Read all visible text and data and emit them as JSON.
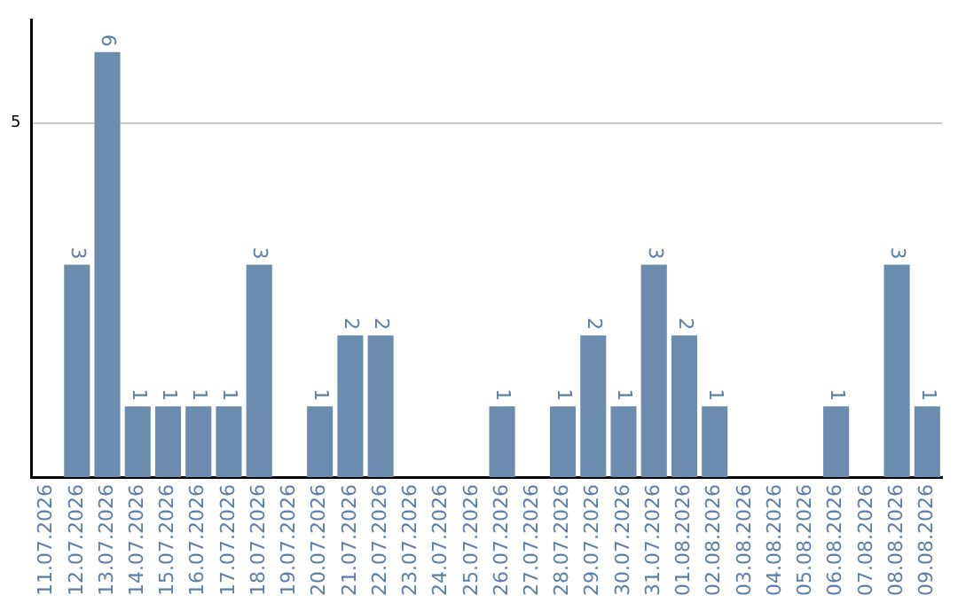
{
  "chart_data": {
    "type": "bar",
    "categories": [
      "11.07.2026",
      "12.07.2026",
      "13.07.2026",
      "14.07.2026",
      "15.07.2026",
      "16.07.2026",
      "17.07.2026",
      "18.07.2026",
      "19.07.2026",
      "20.07.2026",
      "21.07.2026",
      "22.07.2026",
      "23.07.2026",
      "24.07.2026",
      "25.07.2026",
      "26.07.2026",
      "27.07.2026",
      "28.07.2026",
      "29.07.2026",
      "30.07.2026",
      "31.07.2026",
      "01.08.2026",
      "02.08.2026",
      "03.08.2026",
      "04.08.2026",
      "05.08.2026",
      "06.08.2026",
      "07.08.2026",
      "08.08.2026",
      "09.08.2026"
    ],
    "values": [
      0,
      3,
      6,
      1,
      1,
      1,
      1,
      3,
      0,
      1,
      2,
      2,
      0,
      0,
      0,
      1,
      0,
      1,
      2,
      1,
      3,
      2,
      1,
      0,
      0,
      0,
      1,
      0,
      3,
      1
    ],
    "value_labels": [
      null,
      "3",
      "6",
      "1",
      "1",
      "1",
      "1",
      "3",
      null,
      "1",
      "2",
      "2",
      null,
      null,
      null,
      "1",
      null,
      "1",
      "2",
      "1",
      "3",
      "2",
      "1",
      null,
      null,
      null,
      "1",
      null,
      "3",
      "1"
    ],
    "color": "#6b8caf",
    "ylim": [
      0,
      6.45
    ],
    "yticks": [
      5
    ],
    "grid": "y",
    "legend": false
  }
}
